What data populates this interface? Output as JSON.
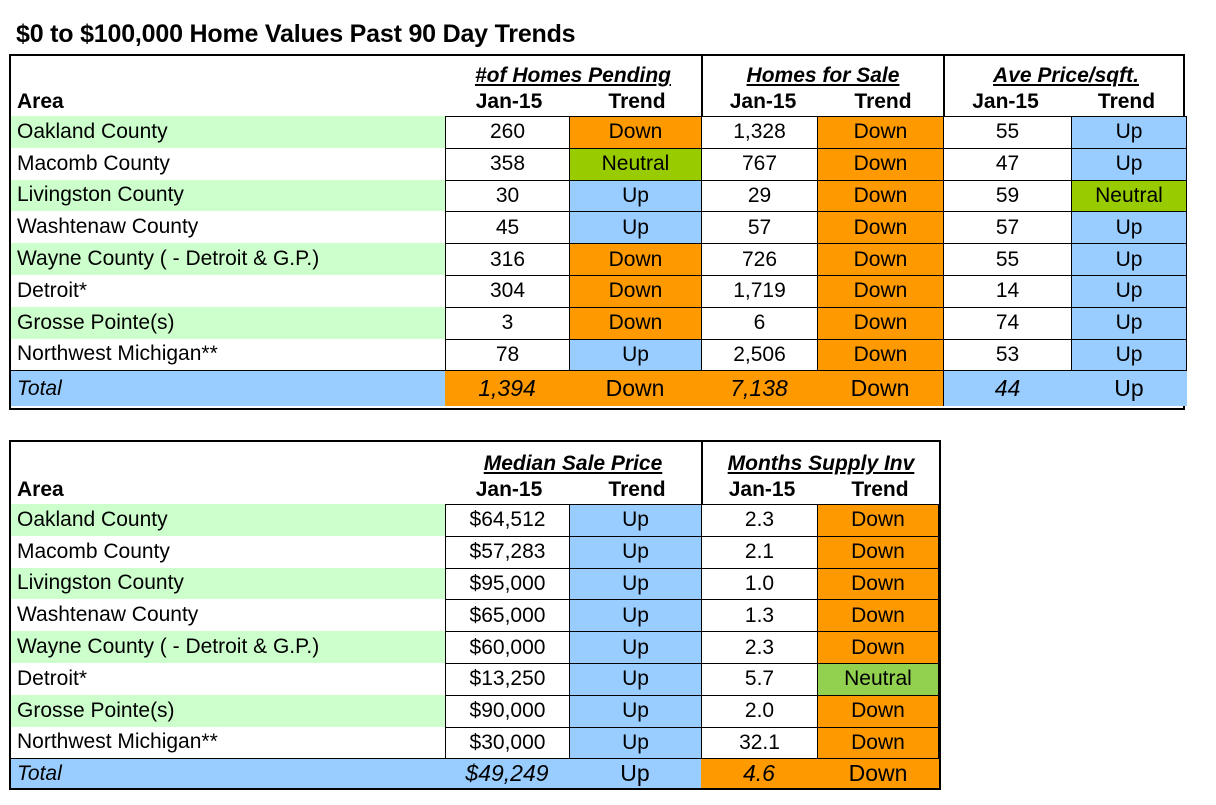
{
  "title": "$0 to $100,000 Home Values Past 90 Day Trends",
  "table1": {
    "area_header": "Area",
    "groups": [
      "#of Homes Pending",
      "Homes for Sale",
      "Ave Price/sqft."
    ],
    "sub_headers": [
      "Jan-15",
      "Trend"
    ],
    "rows": [
      {
        "area": "Oakland County",
        "v1": "260",
        "t1": "Down",
        "v2": "1,328",
        "t2": "Down",
        "v3": "55",
        "t3": "Up"
      },
      {
        "area": "Macomb County",
        "v1": "358",
        "t1": "Neutral",
        "v2": "767",
        "t2": "Down",
        "v3": "47",
        "t3": "Up"
      },
      {
        "area": "Livingston County",
        "v1": "30",
        "t1": "Up",
        "v2": "29",
        "t2": "Down",
        "v3": "59",
        "t3": "Neutral"
      },
      {
        "area": "Washtenaw County",
        "v1": "45",
        "t1": "Up",
        "v2": "57",
        "t2": "Down",
        "v3": "57",
        "t3": "Up"
      },
      {
        "area": "Wayne County ( - Detroit & G.P.)",
        "v1": "316",
        "t1": "Down",
        "v2": "726",
        "t2": "Down",
        "v3": "55",
        "t3": "Up"
      },
      {
        "area": "Detroit*",
        "v1": "304",
        "t1": "Down",
        "v2": "1,719",
        "t2": "Down",
        "v3": "14",
        "t3": "Up"
      },
      {
        "area": "Grosse Pointe(s)",
        "v1": "3",
        "t1": "Down",
        "v2": "6",
        "t2": "Down",
        "v3": "74",
        "t3": "Up"
      },
      {
        "area": "Northwest Michigan**",
        "v1": "78",
        "t1": "Up",
        "v2": "2,506",
        "t2": "Down",
        "v3": "53",
        "t3": "Up"
      }
    ],
    "total": {
      "area": "Total",
      "v1": "1,394",
      "t1": "Down",
      "v2": "7,138",
      "t2": "Down",
      "v3": "44",
      "t3": "Up"
    }
  },
  "table2": {
    "area_header": "Area",
    "groups": [
      "Median Sale Price",
      "Months Supply Inv"
    ],
    "sub_headers": [
      "Jan-15",
      "Trend"
    ],
    "rows": [
      {
        "area": "Oakland County",
        "v1": "$64,512",
        "t1": "Up",
        "v2": "2.3",
        "t2": "Down"
      },
      {
        "area": "Macomb County",
        "v1": "$57,283",
        "t1": "Up",
        "v2": "2.1",
        "t2": "Down"
      },
      {
        "area": "Livingston County",
        "v1": "$95,000",
        "t1": "Up",
        "v2": "1.0",
        "t2": "Down"
      },
      {
        "area": "Washtenaw County",
        "v1": "$65,000",
        "t1": "Up",
        "v2": "1.3",
        "t2": "Down"
      },
      {
        "area": "Wayne County ( - Detroit & G.P.)",
        "v1": "$60,000",
        "t1": "Up",
        "v2": "2.3",
        "t2": "Down"
      },
      {
        "area": "Detroit*",
        "v1": "$13,250",
        "t1": "Up",
        "v2": "5.7",
        "t2": "Neutral"
      },
      {
        "area": "Grosse Pointe(s)",
        "v1": "$90,000",
        "t1": "Up",
        "v2": "2.0",
        "t2": "Down"
      },
      {
        "area": "Northwest Michigan**",
        "v1": "$30,000",
        "t1": "Up",
        "v2": "32.1",
        "t2": "Down"
      }
    ],
    "total": {
      "area": "Total",
      "v1": "$49,249",
      "t1": "Up",
      "v2": "4.6",
      "t2": "Down"
    }
  },
  "colors": {
    "up": "#99ccff",
    "down": "#ff9900",
    "neutral": "#99cc00",
    "area_band": "#ccffcc"
  }
}
